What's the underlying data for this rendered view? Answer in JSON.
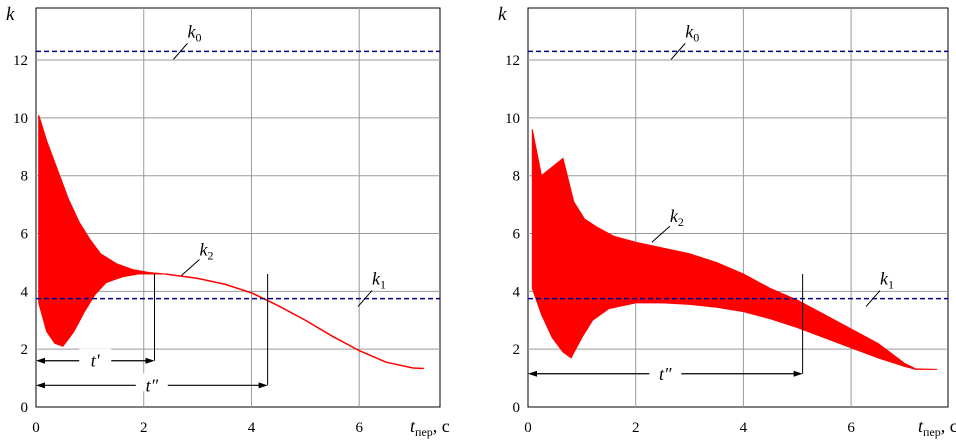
{
  "chart_data": [
    {
      "type": "line",
      "panel": "left",
      "ylabel": "k",
      "xlabel": {
        "main": "t",
        "sub": "пер",
        "unit": ", c"
      },
      "xlim": [
        0,
        7.5
      ],
      "ylim": [
        0,
        13.8
      ],
      "xticks": [
        0,
        2,
        4,
        6
      ],
      "yticks": [
        0,
        2,
        4,
        6,
        8,
        10,
        12
      ],
      "grid": true,
      "colors": {
        "signal": "#ff0000",
        "reference": "#00008b",
        "grid": "#9a9a9a"
      },
      "reference_lines": [
        {
          "label_main": "k",
          "label_sub": "0",
          "y": 12.3
        },
        {
          "label_main": "k",
          "label_sub": "1",
          "y": 3.75
        }
      ],
      "envelope": {
        "upper": [
          [
            0.05,
            10.1
          ],
          [
            0.2,
            9.2
          ],
          [
            0.4,
            8.2
          ],
          [
            0.6,
            7.2
          ],
          [
            0.8,
            6.4
          ],
          [
            1.0,
            5.8
          ],
          [
            1.2,
            5.3
          ],
          [
            1.5,
            4.95
          ],
          [
            1.8,
            4.75
          ],
          [
            2.1,
            4.65
          ],
          [
            2.4,
            4.6
          ]
        ],
        "lower": [
          [
            0.05,
            3.6
          ],
          [
            0.2,
            2.6
          ],
          [
            0.35,
            2.2
          ],
          [
            0.5,
            2.1
          ],
          [
            0.7,
            2.6
          ],
          [
            0.9,
            3.3
          ],
          [
            1.1,
            3.9
          ],
          [
            1.3,
            4.3
          ],
          [
            1.6,
            4.5
          ],
          [
            1.9,
            4.6
          ],
          [
            2.4,
            4.6
          ]
        ]
      },
      "mean_curve": [
        [
          2.4,
          4.6
        ],
        [
          3.0,
          4.45
        ],
        [
          3.5,
          4.25
        ],
        [
          4.0,
          3.95
        ],
        [
          4.5,
          3.5
        ],
        [
          5.0,
          3.0
        ],
        [
          5.5,
          2.45
        ],
        [
          6.0,
          1.95
        ],
        [
          6.5,
          1.55
        ],
        [
          7.0,
          1.35
        ],
        [
          7.2,
          1.33
        ]
      ],
      "annotations": [
        {
          "label_main": "k",
          "label_sub": "2",
          "at": [
            2.7,
            4.55
          ]
        },
        {
          "label": "t′",
          "from": 0.0,
          "to": 2.2,
          "y": 1.6
        },
        {
          "label": "t″",
          "from": 0.0,
          "to": 4.3,
          "y": 0.75
        }
      ]
    },
    {
      "type": "line",
      "panel": "right",
      "ylabel": "k",
      "xlabel": {
        "main": "t",
        "sub": "пер",
        "unit": ", c"
      },
      "xlim": [
        0,
        7.8
      ],
      "ylim": [
        0,
        13.8
      ],
      "xticks": [
        0,
        2,
        4,
        6
      ],
      "yticks": [
        0,
        2,
        4,
        6,
        8,
        10,
        12
      ],
      "grid": true,
      "colors": {
        "signal": "#ff0000",
        "reference": "#00008b",
        "grid": "#9a9a9a"
      },
      "reference_lines": [
        {
          "label_main": "k",
          "label_sub": "0",
          "y": 12.3
        },
        {
          "label_main": "k",
          "label_sub": "1",
          "y": 3.75
        }
      ],
      "envelope": {
        "upper": [
          [
            0.08,
            9.6
          ],
          [
            0.25,
            8.0
          ],
          [
            0.45,
            8.3
          ],
          [
            0.65,
            8.6
          ],
          [
            0.85,
            7.1
          ],
          [
            1.05,
            6.5
          ],
          [
            1.3,
            6.2
          ],
          [
            1.6,
            5.9
          ],
          [
            2.0,
            5.7
          ],
          [
            2.5,
            5.5
          ],
          [
            3.0,
            5.3
          ],
          [
            3.5,
            5.0
          ],
          [
            4.0,
            4.6
          ],
          [
            4.5,
            4.1
          ],
          [
            5.0,
            3.7
          ],
          [
            5.5,
            3.2
          ],
          [
            6.0,
            2.7
          ],
          [
            6.5,
            2.2
          ],
          [
            7.0,
            1.5
          ],
          [
            7.2,
            1.32
          ],
          [
            7.6,
            1.3
          ]
        ],
        "lower": [
          [
            0.08,
            4.1
          ],
          [
            0.25,
            3.2
          ],
          [
            0.45,
            2.4
          ],
          [
            0.65,
            1.9
          ],
          [
            0.8,
            1.7
          ],
          [
            1.0,
            2.4
          ],
          [
            1.2,
            3.0
          ],
          [
            1.5,
            3.4
          ],
          [
            2.0,
            3.6
          ],
          [
            2.5,
            3.6
          ],
          [
            3.0,
            3.55
          ],
          [
            3.5,
            3.45
          ],
          [
            4.0,
            3.3
          ],
          [
            4.5,
            3.05
          ],
          [
            5.0,
            2.75
          ],
          [
            5.5,
            2.4
          ],
          [
            6.0,
            2.05
          ],
          [
            6.5,
            1.7
          ],
          [
            7.0,
            1.4
          ],
          [
            7.2,
            1.3
          ],
          [
            7.6,
            1.3
          ]
        ]
      },
      "annotations": [
        {
          "label_main": "k",
          "label_sub": "2",
          "at": [
            2.3,
            5.7
          ]
        },
        {
          "label": "t″",
          "from": 0.0,
          "to": 5.1,
          "y": 1.15
        }
      ]
    }
  ]
}
